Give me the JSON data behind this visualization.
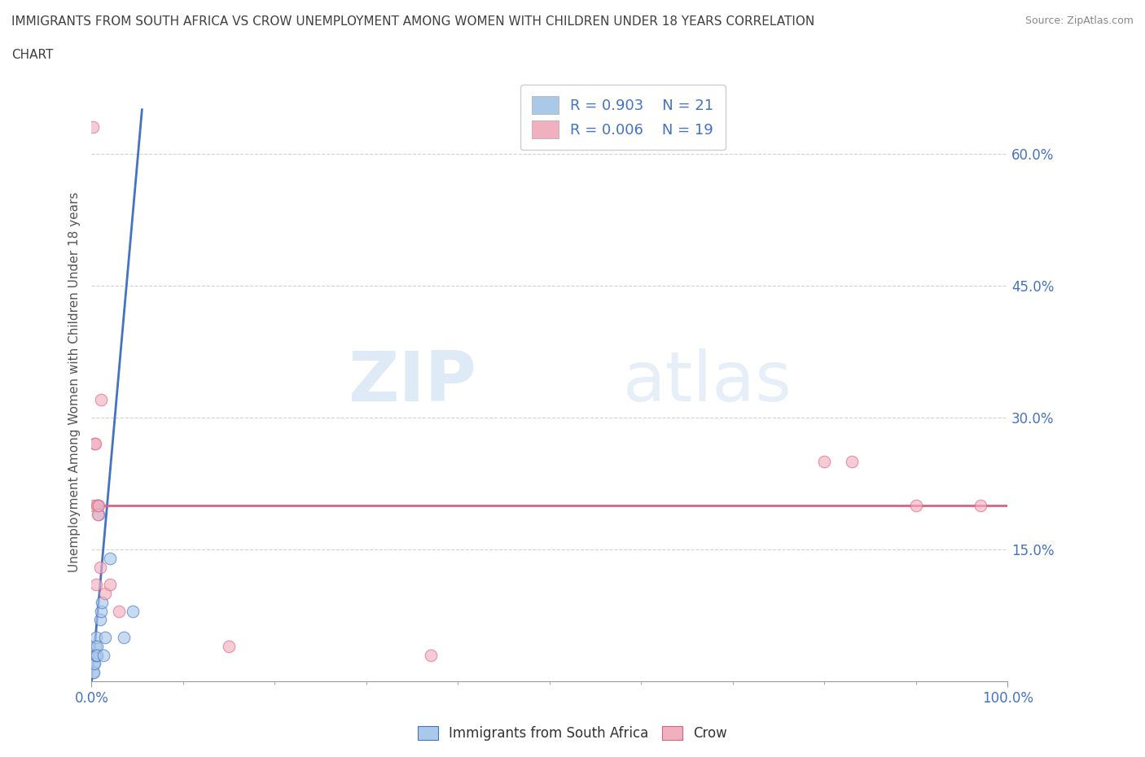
{
  "title_line1": "IMMIGRANTS FROM SOUTH AFRICA VS CROW UNEMPLOYMENT AMONG WOMEN WITH CHILDREN UNDER 18 YEARS CORRELATION",
  "title_line2": "CHART",
  "source": "Source: ZipAtlas.com",
  "ylabel": "Unemployment Among Women with Children Under 18 years",
  "xlim": [
    0,
    100
  ],
  "ylim": [
    0,
    68
  ],
  "yticks": [
    15,
    30,
    45,
    60
  ],
  "ytick_labels": [
    "15.0%",
    "30.0%",
    "45.0%",
    "60.0%"
  ],
  "xtick_left": "0.0%",
  "xtick_right": "100.0%",
  "blue_x": [
    0.15,
    0.2,
    0.25,
    0.3,
    0.35,
    0.4,
    0.45,
    0.5,
    0.55,
    0.6,
    0.65,
    0.7,
    0.8,
    0.9,
    1.0,
    1.1,
    1.3,
    1.5,
    2.0,
    3.5,
    4.5
  ],
  "blue_y": [
    1,
    2,
    1,
    3,
    2,
    4,
    3,
    5,
    4,
    3,
    20,
    20,
    19,
    7,
    8,
    9,
    3,
    5,
    14,
    5,
    8
  ],
  "pink_x": [
    0.1,
    0.2,
    0.3,
    0.4,
    0.5,
    0.6,
    0.7,
    0.8,
    0.9,
    1.0,
    1.5,
    2.0,
    3.0,
    15.0,
    37.0,
    80.0,
    83.0,
    90.0,
    97.0
  ],
  "pink_y": [
    63,
    20,
    27,
    27,
    11,
    20,
    19,
    20,
    13,
    32,
    10,
    11,
    8,
    4,
    3,
    25,
    25,
    20,
    20
  ],
  "blue_trendline_x": [
    0,
    5.5
  ],
  "blue_trendline_y": [
    0,
    65
  ],
  "pink_trendline_y": 20,
  "blue_color": "#aac8e8",
  "pink_color": "#f0b0c0",
  "blue_line_color": "#4472c4",
  "pink_line_color": "#e06080",
  "R_blue": "0.903",
  "N_blue": "21",
  "R_pink": "0.006",
  "N_pink": "19",
  "legend_label_blue": "Immigrants from South Africa",
  "legend_label_pink": "Crow",
  "watermark_zip": "ZIP",
  "watermark_atlas": "atlas",
  "bg_color": "#ffffff",
  "grid_color": "#cccccc",
  "title_color": "#404040",
  "axis_color": "#4472c4",
  "marker_size": 110,
  "marker_alpha": 0.65
}
